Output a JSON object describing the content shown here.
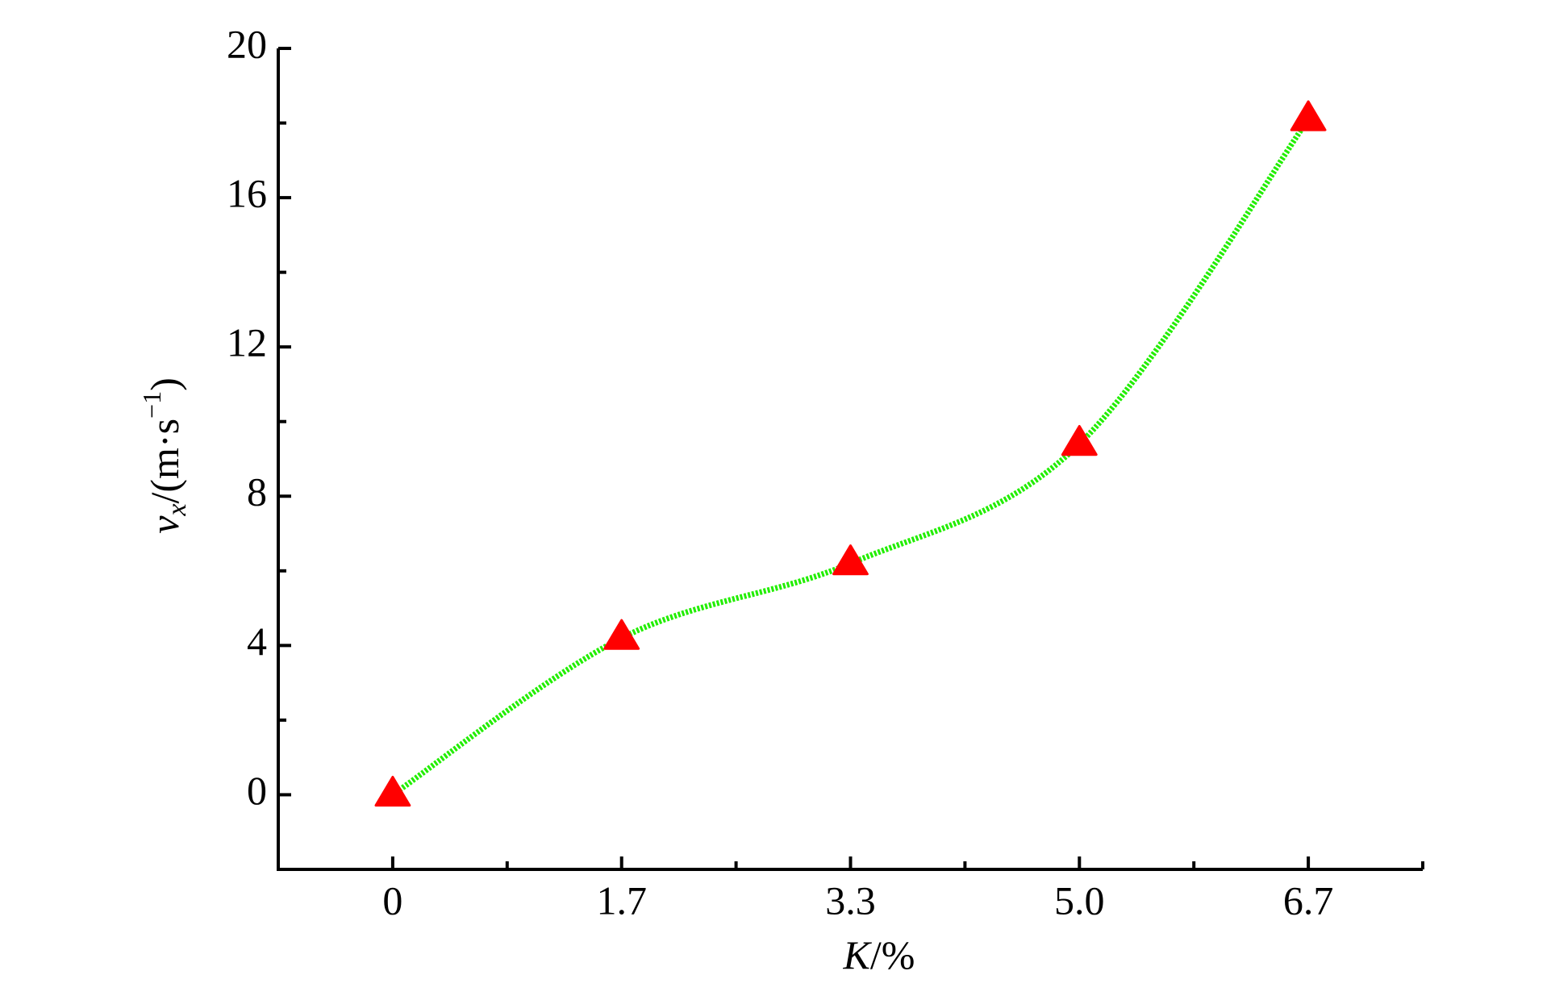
{
  "chart_data": {
    "type": "line",
    "categories": [
      "0",
      "1.7",
      "3.3",
      "5.0",
      "6.7"
    ],
    "x_label": {
      "var": "K",
      "unit": "/%"
    },
    "y_label": {
      "var": "v",
      "sub": "x",
      "unit": "/(m·s",
      "sup": "−1",
      "close": ")"
    },
    "series": [
      {
        "values": [
          0,
          4.2,
          6.2,
          9.4,
          18.1
        ],
        "color": "#ff0000",
        "line_color": "#22ee00"
      }
    ],
    "ylim": [
      -2,
      20
    ],
    "yticks": [
      0,
      4,
      8,
      12,
      16,
      20
    ],
    "minor_yticks": [
      2,
      6,
      10,
      14,
      18
    ],
    "marker": "triangle",
    "grid": false
  }
}
